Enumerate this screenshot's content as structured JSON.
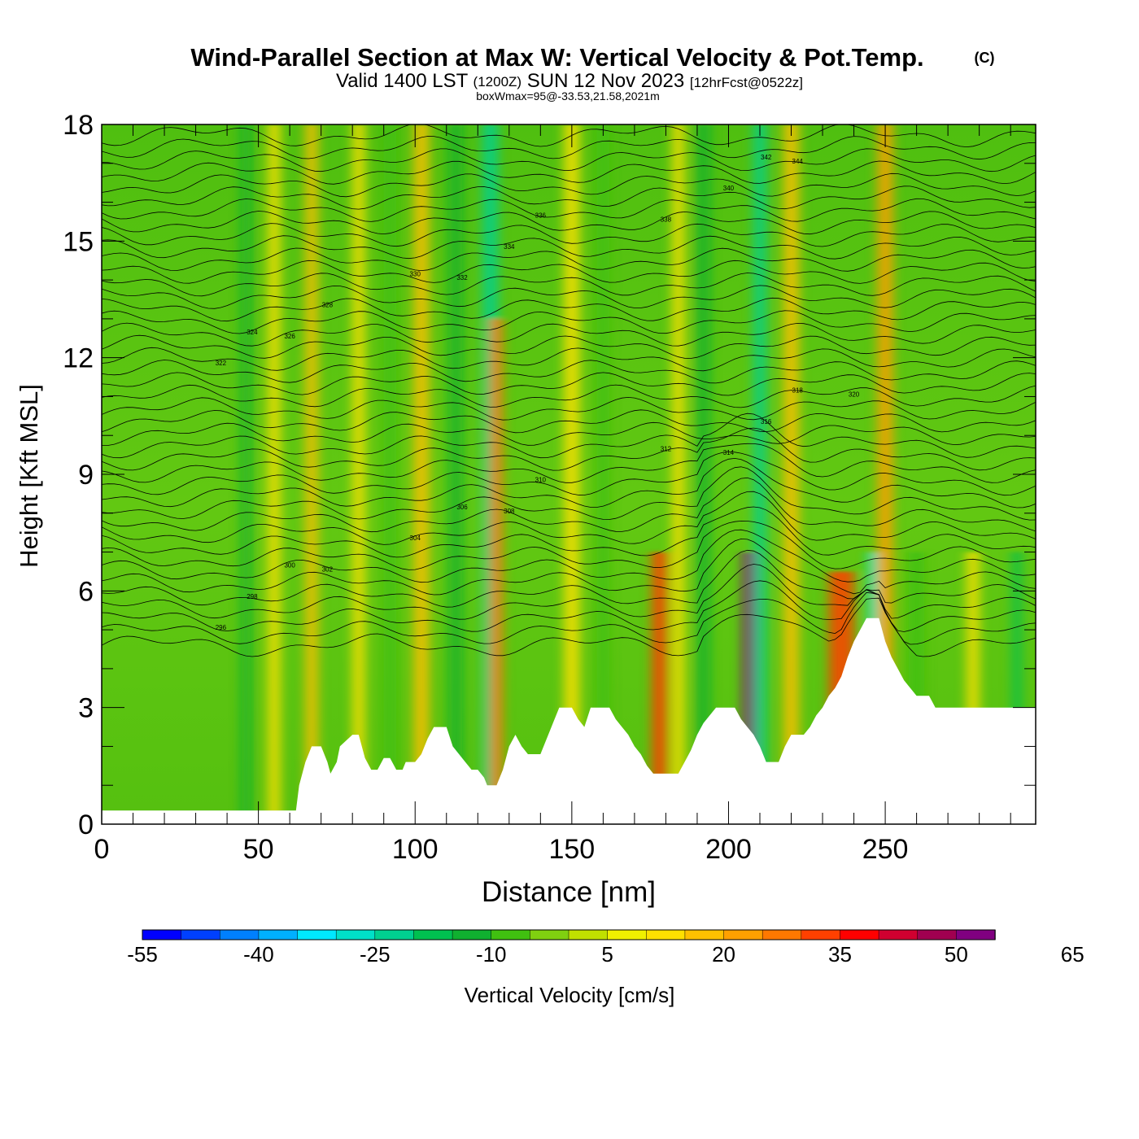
{
  "header": {
    "title": "Wind-Parallel Section at Max W: Vertical Velocity & Pot.Temp.",
    "copyright": "(C)",
    "valid_prefix": "Valid 1400 LST",
    "valid_utc": "(1200Z)",
    "valid_date": "SUN 12 Nov 2023",
    "forecast": "[12hrFcst@0522z]",
    "box_info": "boxWmax=95@-33.53,21.58,2021m"
  },
  "chart_data": {
    "type": "heatmap",
    "xlabel": "Distance [nm]",
    "ylabel": "Height [Kft MSL]",
    "xlim": [
      0,
      298
    ],
    "ylim": [
      0,
      18
    ],
    "x_ticks": [
      0,
      50,
      100,
      150,
      200,
      250
    ],
    "y_ticks": [
      0,
      3,
      6,
      9,
      12,
      15,
      18
    ],
    "colorbar": {
      "label": "Vertical Velocity [cm/s]",
      "min": -55,
      "max": 70,
      "step": 5,
      "tick_labels": [
        -55,
        -40,
        -25,
        -10,
        5,
        20,
        35,
        50,
        65
      ],
      "colors": [
        "#0000ff",
        "#0040ff",
        "#0080ff",
        "#00b0ff",
        "#00e8ff",
        "#00e0c8",
        "#00d090",
        "#00c050",
        "#10b030",
        "#40c010",
        "#80d010",
        "#c0e000",
        "#f0f000",
        "#ffe000",
        "#ffc000",
        "#ffa000",
        "#ff7800",
        "#ff4000",
        "#ff0000",
        "#d00030",
        "#a00050",
        "#800080"
      ]
    },
    "terrain_kft": [
      [
        0,
        0.35
      ],
      [
        62,
        0.35
      ],
      [
        63,
        1.0
      ],
      [
        65,
        1.6
      ],
      [
        67,
        2.0
      ],
      [
        70,
        2.0
      ],
      [
        72,
        1.6
      ],
      [
        73,
        1.3
      ],
      [
        75,
        1.6
      ],
      [
        76,
        2.0
      ],
      [
        80,
        2.3
      ],
      [
        82,
        2.3
      ],
      [
        84,
        1.7
      ],
      [
        86,
        1.4
      ],
      [
        88,
        1.4
      ],
      [
        90,
        1.7
      ],
      [
        92,
        1.7
      ],
      [
        94,
        1.4
      ],
      [
        96,
        1.4
      ],
      [
        97,
        1.6
      ],
      [
        100,
        1.6
      ],
      [
        102,
        1.8
      ],
      [
        104,
        2.2
      ],
      [
        106,
        2.5
      ],
      [
        110,
        2.5
      ],
      [
        112,
        2.0
      ],
      [
        114,
        1.8
      ],
      [
        116,
        1.6
      ],
      [
        118,
        1.4
      ],
      [
        120,
        1.4
      ],
      [
        122,
        1.2
      ],
      [
        123,
        1.0
      ],
      [
        126,
        1.0
      ],
      [
        128,
        1.4
      ],
      [
        130,
        2.0
      ],
      [
        132,
        2.3
      ],
      [
        134,
        2.0
      ],
      [
        136,
        1.8
      ],
      [
        140,
        1.8
      ],
      [
        142,
        2.2
      ],
      [
        144,
        2.6
      ],
      [
        146,
        3.0
      ],
      [
        150,
        3.0
      ],
      [
        152,
        2.7
      ],
      [
        154,
        2.5
      ],
      [
        156,
        3.0
      ],
      [
        162,
        3.0
      ],
      [
        164,
        2.7
      ],
      [
        166,
        2.5
      ],
      [
        168,
        2.3
      ],
      [
        170,
        2.0
      ],
      [
        172,
        1.8
      ],
      [
        174,
        1.5
      ],
      [
        176,
        1.3
      ],
      [
        184,
        1.3
      ],
      [
        186,
        1.6
      ],
      [
        188,
        1.9
      ],
      [
        190,
        2.3
      ],
      [
        192,
        2.6
      ],
      [
        194,
        2.8
      ],
      [
        196,
        3.0
      ],
      [
        202,
        3.0
      ],
      [
        204,
        2.7
      ],
      [
        206,
        2.5
      ],
      [
        208,
        2.3
      ],
      [
        210,
        2.0
      ],
      [
        212,
        1.6
      ],
      [
        216,
        1.6
      ],
      [
        218,
        2.0
      ],
      [
        220,
        2.3
      ],
      [
        224,
        2.3
      ],
      [
        226,
        2.5
      ],
      [
        228,
        2.8
      ],
      [
        230,
        3.0
      ],
      [
        232,
        3.3
      ],
      [
        234,
        3.5
      ],
      [
        236,
        3.8
      ],
      [
        238,
        4.3
      ],
      [
        240,
        4.7
      ],
      [
        242,
        5.0
      ],
      [
        244,
        5.3
      ],
      [
        248,
        5.3
      ],
      [
        250,
        4.7
      ],
      [
        252,
        4.3
      ],
      [
        254,
        4.0
      ],
      [
        256,
        3.7
      ],
      [
        258,
        3.5
      ],
      [
        260,
        3.3
      ],
      [
        264,
        3.3
      ],
      [
        266,
        3.0
      ],
      [
        298,
        3.0
      ]
    ],
    "theta_contour_labels": [
      "296",
      "298",
      "300",
      "302",
      "304",
      "306",
      "308",
      "310",
      "312",
      "314",
      "316",
      "318",
      "320",
      "322",
      "324",
      "326",
      "328",
      "330",
      "332",
      "334",
      "336",
      "338",
      "340",
      "342",
      "344"
    ],
    "velocity_max_cm_s": 95,
    "velocity_max_location": "-33.53,21.58",
    "velocity_max_height_m": 2021,
    "velocity_bands": [
      {
        "x": 46,
        "w": 3,
        "value": -12,
        "top_kft": 18
      },
      {
        "x": 55,
        "w": 4,
        "value": 12,
        "top_kft": 18
      },
      {
        "x": 67,
        "w": 4,
        "value": 18,
        "top_kft": 18
      },
      {
        "x": 82,
        "w": 4,
        "value": 10,
        "top_kft": 18
      },
      {
        "x": 92,
        "w": 4,
        "value": -10,
        "top_kft": 18
      },
      {
        "x": 102,
        "w": 5,
        "value": 18,
        "top_kft": 18
      },
      {
        "x": 113,
        "w": 4,
        "value": -15,
        "top_kft": 18
      },
      {
        "x": 124,
        "w": 5,
        "value": -25,
        "top_kft": 18
      },
      {
        "x": 126,
        "w": 4,
        "value": 25,
        "top_kft": 13
      },
      {
        "x": 150,
        "w": 5,
        "value": 14,
        "top_kft": 18
      },
      {
        "x": 160,
        "w": 4,
        "value": -10,
        "top_kft": 18
      },
      {
        "x": 178,
        "w": 5,
        "value": 30,
        "top_kft": 7
      },
      {
        "x": 184,
        "w": 4,
        "value": 12,
        "top_kft": 18
      },
      {
        "x": 192,
        "w": 4,
        "value": -12,
        "top_kft": 18
      },
      {
        "x": 207,
        "w": 5,
        "value": 65,
        "top_kft": 7
      },
      {
        "x": 210,
        "w": 4,
        "value": -25,
        "top_kft": 18
      },
      {
        "x": 220,
        "w": 5,
        "value": 15,
        "top_kft": 18
      },
      {
        "x": 236,
        "w": 8,
        "value": 30,
        "top_kft": 6.5
      },
      {
        "x": 246,
        "w": 3,
        "value": -28,
        "top_kft": 7
      },
      {
        "x": 250,
        "w": 5,
        "value": 20,
        "top_kft": 18
      },
      {
        "x": 260,
        "w": 5,
        "value": -10,
        "top_kft": 7
      },
      {
        "x": 278,
        "w": 4,
        "value": 12,
        "top_kft": 7
      },
      {
        "x": 292,
        "w": 3,
        "value": -20,
        "top_kft": 7
      }
    ]
  }
}
